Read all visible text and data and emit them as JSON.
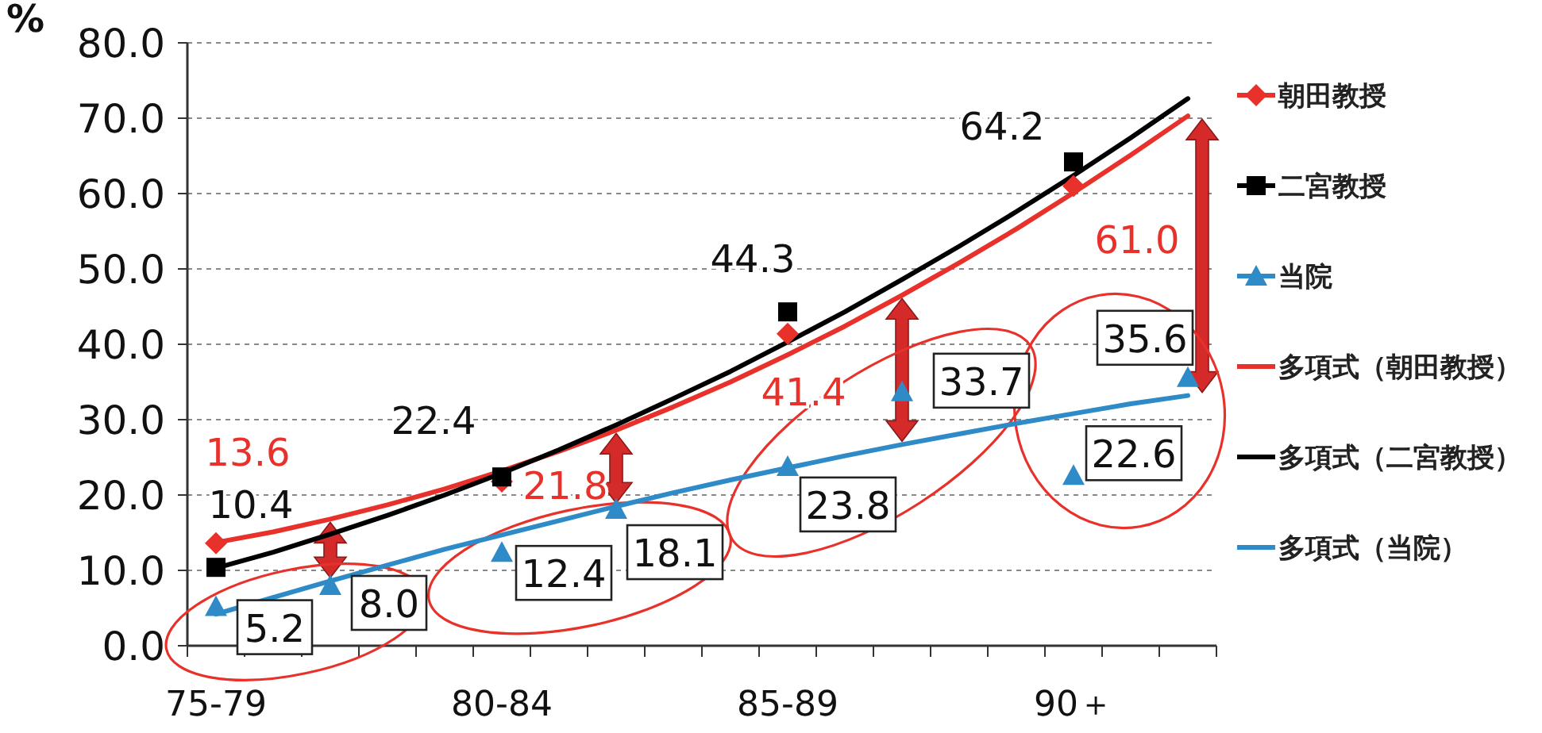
{
  "chart_data": {
    "type": "line",
    "ylabel": "%",
    "categories": [
      "75-79",
      null,
      null,
      null,
      null,
      "80-84",
      null,
      null,
      null,
      null,
      "85-89",
      null,
      null,
      null,
      null,
      "90＋",
      null,
      null
    ],
    "ylim": [
      0,
      80
    ],
    "yticks": [
      {
        "value": 0,
        "label": "0.0"
      },
      {
        "value": 10,
        "label": "10.0"
      },
      {
        "value": 20,
        "label": "20.0"
      },
      {
        "value": 30,
        "label": "30.0"
      },
      {
        "value": 40,
        "label": "40.0"
      },
      {
        "value": 50,
        "label": "50.0"
      },
      {
        "value": 60,
        "label": "60.0"
      },
      {
        "value": 70,
        "label": "70.0"
      },
      {
        "value": 80,
        "label": "80.0"
      }
    ],
    "grid": "y",
    "legend": "right",
    "series": [
      {
        "name": "朝田教授",
        "type": "scatter",
        "marker": "diamond",
        "color": "#e8312a",
        "values": [
          13.6,
          null,
          null,
          null,
          null,
          21.8,
          null,
          null,
          null,
          null,
          41.4,
          null,
          null,
          null,
          null,
          61.0,
          null,
          null
        ],
        "value_labels": [
          "13.6",
          null,
          null,
          null,
          null,
          "21.8",
          null,
          null,
          null,
          null,
          "41.4",
          null,
          null,
          null,
          null,
          "61.0",
          null,
          null
        ]
      },
      {
        "name": "二宮教授",
        "type": "scatter",
        "marker": "square",
        "color": "#000000",
        "values": [
          10.4,
          null,
          null,
          null,
          null,
          22.4,
          null,
          null,
          null,
          null,
          44.3,
          null,
          null,
          null,
          null,
          64.2,
          null,
          null
        ],
        "value_labels": [
          "10.4",
          null,
          null,
          null,
          null,
          "22.4",
          null,
          null,
          null,
          null,
          "44.3",
          null,
          null,
          null,
          null,
          "64.2",
          null,
          null
        ]
      },
      {
        "name": "当院",
        "type": "scatter",
        "marker": "triangle",
        "color": "#2e8bc8",
        "values": [
          5.2,
          null,
          8.0,
          null,
          null,
          12.4,
          null,
          18.1,
          null,
          null,
          23.8,
          null,
          33.7,
          null,
          null,
          22.6,
          null,
          35.6
        ],
        "value_labels": [
          "5.2",
          null,
          "8.0",
          null,
          null,
          "12.4",
          null,
          "18.1",
          null,
          null,
          "23.8",
          null,
          "33.7",
          null,
          null,
          "22.6",
          null,
          "35.6"
        ]
      },
      {
        "name": "多項式（朝田教授）",
        "type": "line",
        "marker": "none",
        "color": "#e8312a",
        "values": [
          13.7,
          15.1,
          16.8,
          18.7,
          20.8,
          23.2,
          25.8,
          28.6,
          31.7,
          35.0,
          38.6,
          42.4,
          46.5,
          50.8,
          55.3,
          60.1,
          65.1,
          70.3
        ]
      },
      {
        "name": "多項式（二宮教授）",
        "type": "line",
        "marker": "none",
        "color": "#000000",
        "values": [
          10.3,
          12.4,
          14.8,
          17.3,
          20.0,
          22.9,
          26.0,
          29.3,
          32.8,
          36.4,
          40.3,
          44.3,
          48.6,
          53.0,
          57.6,
          62.4,
          67.4,
          72.6
        ]
      },
      {
        "name": "多項式（当院）",
        "type": "line",
        "marker": "none",
        "color": "#2e8bc8",
        "values": [
          4.2,
          6.4,
          8.6,
          10.7,
          12.8,
          14.7,
          16.6,
          18.5,
          20.3,
          22.0,
          23.6,
          25.2,
          26.7,
          28.1,
          29.5,
          30.8,
          32.1,
          33.2
        ]
      }
    ]
  }
}
